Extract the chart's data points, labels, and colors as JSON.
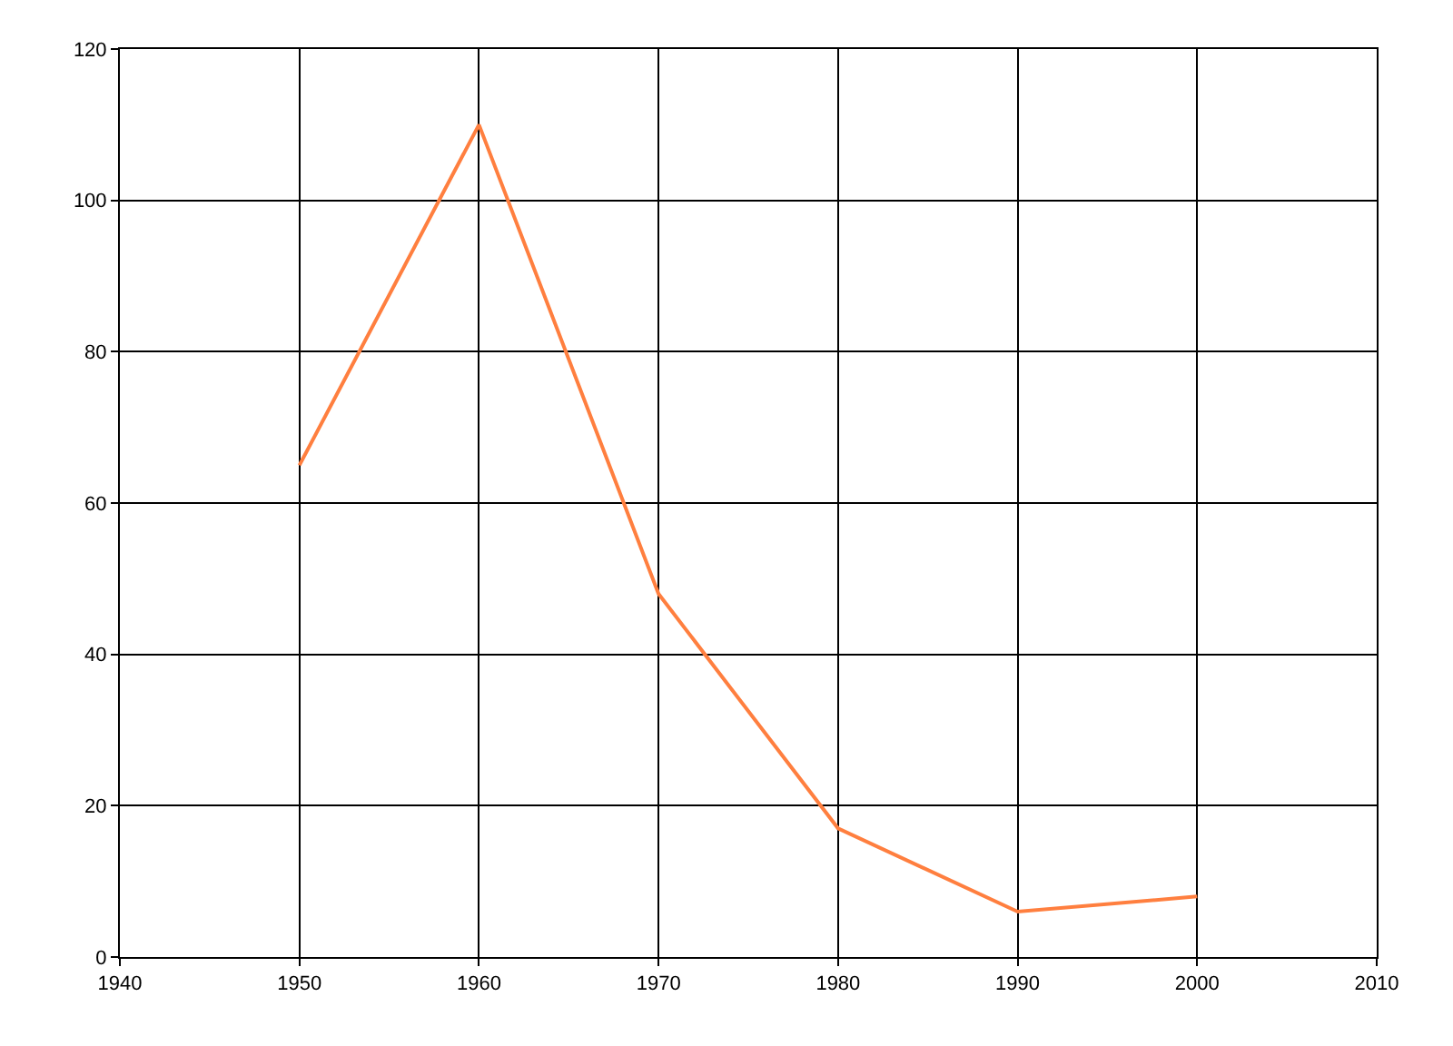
{
  "chart_data": {
    "type": "line",
    "x": [
      1950,
      1960,
      1970,
      1980,
      1990,
      2000
    ],
    "series": [
      {
        "color": "#ff7f3f",
        "values": [
          65,
          110,
          48,
          17,
          6,
          8
        ]
      }
    ],
    "xlim": [
      1940,
      2010
    ],
    "xticks": [
      1940,
      1950,
      1960,
      1970,
      1980,
      1990,
      2000,
      2010
    ],
    "ylim": [
      0,
      120
    ],
    "yticks": [
      0,
      20,
      40,
      60,
      80,
      100,
      120
    ],
    "grid": true,
    "marker": "none",
    "line_style": "solid"
  }
}
